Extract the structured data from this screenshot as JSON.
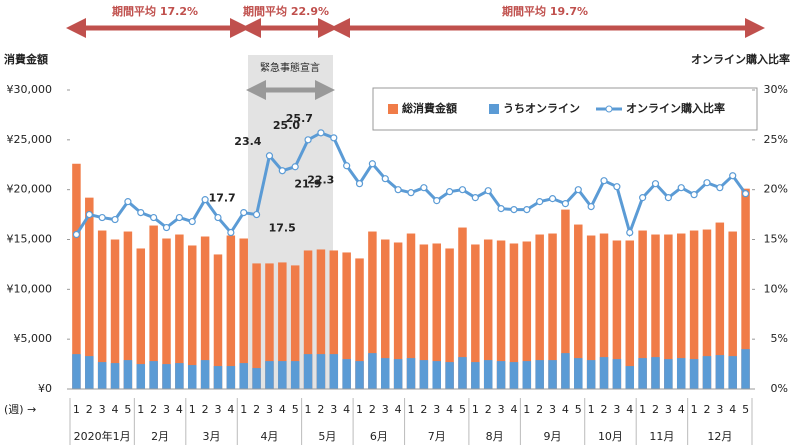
{
  "chart_data": {
    "type": "bar-line",
    "y_axis_label": "消費金額",
    "y2_axis_label": "オンライン購入比率",
    "x_axis_label": "(週) →",
    "annotations": [
      "期間平均 17.2%",
      "期間平均 22.9%",
      "期間平均 19.7%",
      "緊急事態宣言"
    ],
    "categories": [
      "1",
      "2",
      "3",
      "4",
      "5",
      "1",
      "2",
      "3",
      "4",
      "1",
      "2",
      "3",
      "4",
      "1",
      "2",
      "3",
      "4",
      "5",
      "1",
      "2",
      "3",
      "4",
      "1",
      "2",
      "3",
      "4",
      "1",
      "2",
      "3",
      "4",
      "5",
      "1",
      "2",
      "3",
      "4",
      "1",
      "2",
      "3",
      "4",
      "5",
      "1",
      "2",
      "3",
      "4",
      "1",
      "2",
      "3",
      "4",
      "1",
      "2",
      "3",
      "4",
      "5"
    ],
    "month_labels": [
      "2020年1月",
      "2月",
      "3月",
      "4月",
      "5月",
      "6月",
      "7月",
      "8月",
      "9月",
      "10月",
      "11月",
      "12月"
    ],
    "series": [
      {
        "name": "総消費金額",
        "color": "#f07c48",
        "values": [
          22600,
          19200,
          15900,
          15000,
          15800,
          14100,
          16400,
          15100,
          15500,
          14400,
          15300,
          13500,
          15400,
          15100,
          12600,
          12600,
          12700,
          12400,
          13900,
          14000,
          13900,
          13700,
          13100,
          15800,
          15000,
          14700,
          15600,
          14500,
          14600,
          14100,
          16200,
          14500,
          15000,
          14900,
          14600,
          14800,
          15500,
          15600,
          18000,
          16500,
          15400,
          15600,
          14900,
          14900,
          15900,
          15500,
          15500,
          15600,
          15900,
          16000,
          16700,
          15800,
          20100
        ]
      },
      {
        "name": "うちオンライン",
        "color": "#5b9bd5",
        "values": [
          3500,
          3300,
          2700,
          2600,
          2900,
          2500,
          2800,
          2500,
          2600,
          2400,
          2900,
          2300,
          2300,
          2600,
          2100,
          2800,
          2800,
          2800,
          3500,
          3500,
          3500,
          3000,
          2800,
          3600,
          3100,
          3000,
          3100,
          2900,
          2800,
          2700,
          3200,
          2700,
          2900,
          2800,
          2700,
          2800,
          2900,
          2900,
          3600,
          3100,
          2900,
          3200,
          3000,
          2300,
          3100,
          3200,
          3000,
          3100,
          3000,
          3300,
          3400,
          3300,
          4000
        ]
      },
      {
        "name": "オンライン購入比率",
        "color": "#5b9bd5",
        "axis": "y2",
        "values": [
          15.5,
          17.5,
          17.2,
          17.0,
          18.8,
          17.7,
          17.2,
          16.2,
          17.2,
          16.8,
          19.0,
          17.2,
          15.7,
          17.7,
          17.5,
          23.4,
          21.9,
          22.3,
          25.0,
          25.7,
          25.2,
          22.4,
          20.6,
          22.6,
          21.1,
          20.0,
          19.7,
          20.2,
          18.9,
          19.8,
          20.0,
          19.2,
          19.9,
          18.1,
          18.0,
          18.0,
          18.8,
          19.1,
          18.6,
          20.0,
          18.3,
          20.9,
          20.3,
          15.7,
          19.2,
          20.6,
          19.2,
          20.2,
          19.5,
          20.7,
          20.2,
          21.4,
          19.6
        ],
        "value_labels": [
          null,
          null,
          null,
          null,
          null,
          null,
          null,
          null,
          null,
          null,
          null,
          null,
          null,
          "17.7",
          "17.5",
          "23.4",
          "21.9",
          "22.3",
          "25.0",
          "25.7",
          null,
          null,
          null,
          null,
          null,
          null,
          null,
          null,
          null,
          null,
          null,
          null,
          null,
          null,
          null,
          null,
          null,
          null,
          null,
          null,
          null,
          null,
          null,
          null,
          null,
          null,
          null,
          null,
          null,
          null,
          null,
          null,
          null
        ]
      }
    ],
    "ylim": [
      0,
      30000
    ],
    "yticks": [
      {
        "value": 0,
        "label": "¥0"
      },
      {
        "value": 5000,
        "label": "¥5,000"
      },
      {
        "value": 10000,
        "label": "¥10,000"
      },
      {
        "value": 15000,
        "label": "¥15,000"
      },
      {
        "value": 20000,
        "label": "¥20,000"
      },
      {
        "value": 25000,
        "label": "¥25,000"
      },
      {
        "value": 30000,
        "label": "¥30,000"
      }
    ],
    "y2lim": [
      0,
      30
    ],
    "y2ticks": [
      {
        "value": 0,
        "label": "0%"
      },
      {
        "value": 5,
        "label": "5%"
      },
      {
        "value": 10,
        "label": "10%"
      },
      {
        "value": 15,
        "label": "15%"
      },
      {
        "value": 20,
        "label": "20%"
      },
      {
        "value": 25,
        "label": "25%"
      },
      {
        "value": 30,
        "label": "30%"
      }
    ],
    "grid": false
  }
}
